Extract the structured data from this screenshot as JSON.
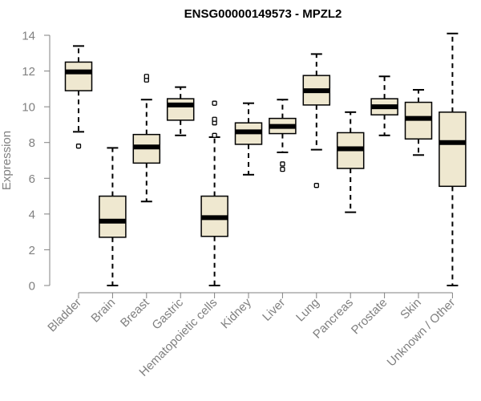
{
  "chart_data": {
    "type": "box",
    "title": "ENSG00000149573 - MPZL2",
    "xlabel": "",
    "ylabel": "Expression",
    "ylim": [
      0,
      14
    ],
    "yticks": [
      0,
      2,
      4,
      6,
      8,
      10,
      12,
      14
    ],
    "box_fill": "#efe8d0",
    "box_stroke": "#000000",
    "axis_color": "#808080",
    "categories": [
      "Bladder",
      "Brain",
      "Breast",
      "Gastric",
      "Hematopoietic cells",
      "Kidney",
      "Liver",
      "Lung",
      "Pancreas",
      "Prostate",
      "Skin",
      "Unknown / Other"
    ],
    "boxes": [
      {
        "category": "Bladder",
        "whisker_low": 8.6,
        "q1": 10.9,
        "median": 11.95,
        "q3": 12.5,
        "whisker_high": 13.4,
        "outliers": [
          7.8
        ]
      },
      {
        "category": "Brain",
        "whisker_low": 0.0,
        "q1": 2.7,
        "median": 3.6,
        "q3": 5.0,
        "whisker_high": 7.7,
        "outliers": []
      },
      {
        "category": "Breast",
        "whisker_low": 4.7,
        "q1": 6.85,
        "median": 7.75,
        "q3": 8.45,
        "whisker_high": 10.4,
        "outliers": [
          11.5,
          11.7
        ]
      },
      {
        "category": "Gastric",
        "whisker_low": 8.4,
        "q1": 9.25,
        "median": 10.1,
        "q3": 10.45,
        "whisker_high": 11.1,
        "outliers": []
      },
      {
        "category": "Hematopoietic cells",
        "whisker_low": 0.0,
        "q1": 2.75,
        "median": 3.8,
        "q3": 5.0,
        "whisker_high": 8.3,
        "outliers": [
          8.4,
          9.1,
          9.3,
          10.2
        ]
      },
      {
        "category": "Kidney",
        "whisker_low": 6.2,
        "q1": 7.9,
        "median": 8.6,
        "q3": 9.1,
        "whisker_high": 10.2,
        "outliers": []
      },
      {
        "category": "Liver",
        "whisker_low": 7.45,
        "q1": 8.5,
        "median": 8.9,
        "q3": 9.35,
        "whisker_high": 10.4,
        "outliers": [
          6.5,
          6.8
        ]
      },
      {
        "category": "Lung",
        "whisker_low": 7.6,
        "q1": 10.1,
        "median": 10.9,
        "q3": 11.75,
        "whisker_high": 12.95,
        "outliers": [
          5.6
        ]
      },
      {
        "category": "Pancreas",
        "whisker_low": 4.1,
        "q1": 6.55,
        "median": 7.65,
        "q3": 8.55,
        "whisker_high": 9.7,
        "outliers": []
      },
      {
        "category": "Prostate",
        "whisker_low": 8.4,
        "q1": 9.55,
        "median": 10.0,
        "q3": 10.45,
        "whisker_high": 11.7,
        "outliers": []
      },
      {
        "category": "Skin",
        "whisker_low": 7.3,
        "q1": 8.2,
        "median": 9.35,
        "q3": 10.25,
        "whisker_high": 10.95,
        "outliers": []
      },
      {
        "category": "Unknown / Other",
        "whisker_low": 0.0,
        "q1": 5.55,
        "median": 8.0,
        "q3": 9.7,
        "whisker_high": 14.1,
        "outliers": []
      }
    ]
  }
}
